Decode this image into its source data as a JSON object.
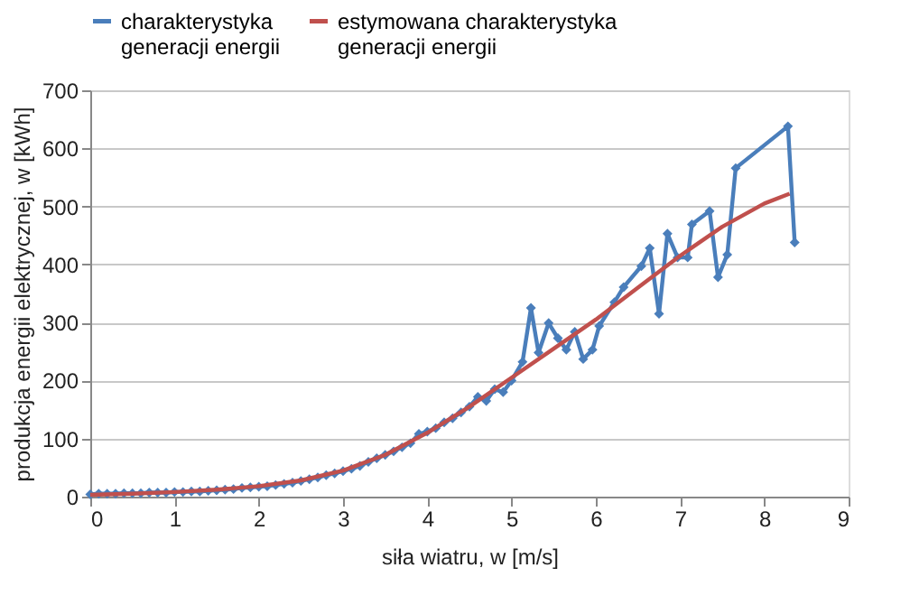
{
  "chart_data": {
    "type": "line",
    "xlabel": "siła wiatru, w [m/s]",
    "ylabel": "produkcja energii elektrycznej, w [kWh]",
    "xlim": [
      0,
      9
    ],
    "xticks": [
      0,
      1,
      2,
      3,
      4,
      5,
      6,
      7,
      8,
      9
    ],
    "ylim": [
      0,
      700
    ],
    "yticks": [
      0,
      100,
      200,
      300,
      400,
      500,
      600,
      700
    ],
    "grid": "y",
    "legend": "top",
    "series": [
      {
        "name": "charakterystyka generacji energii",
        "color": "#4a7ebb",
        "marker": "diamond",
        "x": [
          0,
          0.1,
          0.2,
          0.3,
          0.4,
          0.5,
          0.6,
          0.7,
          0.8,
          0.9,
          1.0,
          1.1,
          1.2,
          1.3,
          1.4,
          1.5,
          1.6,
          1.7,
          1.8,
          1.9,
          2.0,
          2.1,
          2.2,
          2.3,
          2.4,
          2.5,
          2.6,
          2.7,
          2.8,
          2.9,
          3.0,
          3.1,
          3.2,
          3.3,
          3.4,
          3.5,
          3.6,
          3.7,
          3.8,
          3.9,
          4.0,
          4.1,
          4.2,
          4.3,
          4.4,
          4.5,
          4.6,
          4.7,
          4.8,
          4.9,
          5.0,
          5.13,
          5.23,
          5.32,
          5.44,
          5.55,
          5.65,
          5.75,
          5.85,
          5.96,
          6.04,
          6.22,
          6.33,
          6.54,
          6.64,
          6.75,
          6.85,
          6.97,
          7.09,
          7.14,
          7.35,
          7.45,
          7.56,
          7.66,
          8.28,
          8.36
        ],
        "values": [
          4,
          5,
          5,
          5,
          6,
          6,
          6,
          7,
          7,
          7,
          8,
          8,
          9,
          9,
          10,
          11,
          12,
          13,
          15,
          16,
          17,
          18,
          20,
          22,
          24,
          27,
          30,
          33,
          37,
          40,
          44,
          48,
          53,
          60,
          66,
          72,
          78,
          85,
          92,
          108,
          112,
          118,
          128,
          135,
          145,
          155,
          172,
          165,
          185,
          180,
          200,
          232,
          325,
          248,
          299,
          273,
          253,
          284,
          237,
          253,
          294,
          335,
          361,
          397,
          428,
          315,
          453,
          412,
          412,
          469,
          492,
          378,
          417,
          566,
          638,
          438
        ]
      },
      {
        "name": "estymowana charakterystyka generacji energii",
        "color": "#c0504d",
        "marker": "none",
        "x": [
          0,
          0.5,
          1,
          1.5,
          2,
          2.5,
          3,
          3.5,
          4,
          4.5,
          5,
          5.5,
          6,
          6.5,
          7,
          7.5,
          8,
          8.3
        ],
        "values": [
          3,
          5,
          8,
          12,
          18,
          28,
          45,
          72,
          110,
          155,
          205,
          255,
          305,
          360,
          415,
          465,
          505,
          522
        ]
      }
    ]
  }
}
